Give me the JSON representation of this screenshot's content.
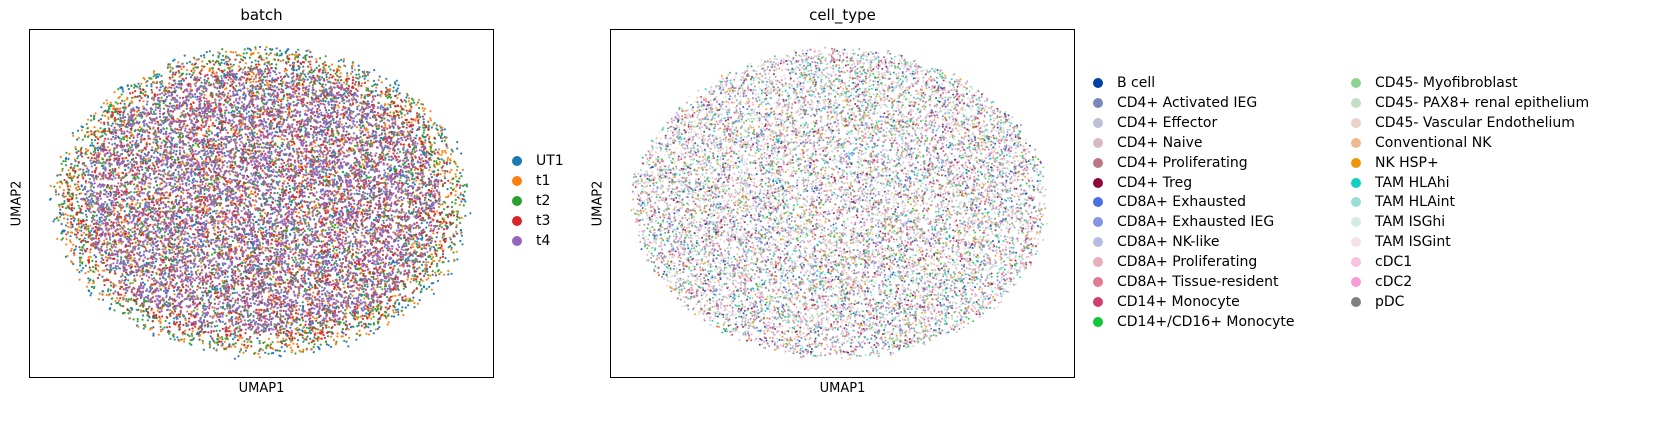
{
  "chart_data": [
    {
      "type": "scatter",
      "title": "batch",
      "xlabel": "UMAP1",
      "ylabel": "UMAP2",
      "grid": false,
      "legend_placement": "right",
      "series": [
        {
          "name": "UT1",
          "color": "#1f77b4"
        },
        {
          "name": "t1",
          "color": "#ff7f0e"
        },
        {
          "name": "t2",
          "color": "#2ca02c"
        },
        {
          "name": "t3",
          "color": "#d62728"
        },
        {
          "name": "t4",
          "color": "#9467bd"
        }
      ]
    },
    {
      "type": "scatter",
      "title": "cell_type",
      "xlabel": "UMAP1",
      "ylabel": "UMAP2",
      "grid": false,
      "legend_placement": "right",
      "series": [
        {
          "name": "B cell",
          "color": "#023fa5"
        },
        {
          "name": "CD4+ Activated IEG",
          "color": "#7d87b9"
        },
        {
          "name": "CD4+ Effector",
          "color": "#bec1d4"
        },
        {
          "name": "CD4+ Naive",
          "color": "#d6bcc0"
        },
        {
          "name": "CD4+ Proliferating",
          "color": "#bb7784"
        },
        {
          "name": "CD4+ Treg",
          "color": "#8e063b"
        },
        {
          "name": "CD8A+ Exhausted",
          "color": "#4a6fe3"
        },
        {
          "name": "CD8A+ Exhausted IEG",
          "color": "#8595e1"
        },
        {
          "name": "CD8A+ NK-like",
          "color": "#b5bbe3"
        },
        {
          "name": "CD8A+ Proliferating",
          "color": "#e6afb9"
        },
        {
          "name": "CD8A+ Tissue-resident",
          "color": "#e07b91"
        },
        {
          "name": "CD14+ Monocyte",
          "color": "#d33f6a"
        },
        {
          "name": "CD14+/CD16+ Monocyte",
          "color": "#11c638"
        },
        {
          "name": "CD45- Myofibroblast",
          "color": "#8dd593"
        },
        {
          "name": "CD45- PAX8+ renal epithelium",
          "color": "#c6dec7"
        },
        {
          "name": "CD45- Vascular Endothelium",
          "color": "#ead3c6"
        },
        {
          "name": "Conventional NK",
          "color": "#f0b98d"
        },
        {
          "name": "NK HSP+",
          "color": "#ef9708"
        },
        {
          "name": "TAM HLAhi",
          "color": "#0fcfc0"
        },
        {
          "name": "TAM HLAint",
          "color": "#9cded6"
        },
        {
          "name": "TAM ISGhi",
          "color": "#d5eae7"
        },
        {
          "name": "TAM ISGint",
          "color": "#f3e1eb"
        },
        {
          "name": "cDC1",
          "color": "#f6c4e1"
        },
        {
          "name": "cDC2",
          "color": "#f79cd4"
        },
        {
          "name": "pDC",
          "color": "#7f7f7f"
        }
      ]
    }
  ]
}
